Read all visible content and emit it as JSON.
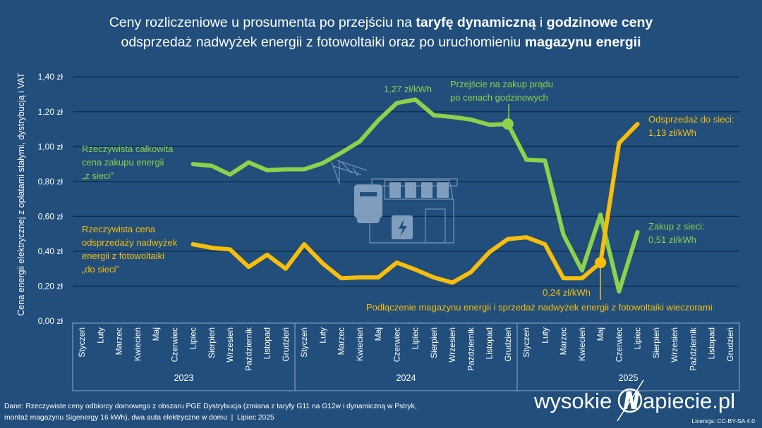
{
  "title": {
    "line1": [
      {
        "text": "Ceny rozliczeniowe u prosumenta po przejściu na ",
        "bold": false
      },
      {
        "text": "taryfę dynamiczną",
        "bold": true
      },
      {
        "text": " i ",
        "bold": false
      },
      {
        "text": "godzinowe ceny",
        "bold": true
      }
    ],
    "line2": [
      {
        "text": "odsprzedaż nadwyżek energii z fotowoltaiki oraz po uruchomieniu ",
        "bold": false
      },
      {
        "text": "magazynu energii",
        "bold": true
      }
    ]
  },
  "colors": {
    "background": "#214e7b",
    "green": "#8dd24a",
    "yellow": "#f8be0a",
    "grid": "#0f2d4b",
    "text": "#ffffff"
  },
  "chart_data": {
    "type": "line",
    "ylabel": "Cena energii elektrycznej z opłatami stałymi, dystrybucją i VAT",
    "ylim": [
      0,
      1.4
    ],
    "yticks": [
      0,
      0.2,
      0.4,
      0.6,
      0.8,
      1.0,
      1.2,
      1.4
    ],
    "ytick_labels": [
      "0,00 zł",
      "0,20 zł",
      "0,40 zł",
      "0,60 zł",
      "0,80 zł",
      "1,00 zł",
      "1,20 zł",
      "1,40 zł"
    ],
    "grid": true,
    "years": [
      "2023",
      "2024",
      "2025"
    ],
    "months": [
      "Styczeń",
      "Luty",
      "Marzec",
      "Kwiecień",
      "Maj",
      "Czerwiec",
      "Lipiec",
      "Sierpień",
      "Wrzesień",
      "Październik",
      "Listopad",
      "Grudzień"
    ],
    "series": [
      {
        "name": "Rzeczywista całkowita cena zakupu energii „z sieci”",
        "color": "#8dd24a",
        "values": [
          null,
          null,
          null,
          null,
          null,
          null,
          0.9,
          0.89,
          0.84,
          0.91,
          0.865,
          0.87,
          0.87,
          0.905,
          0.965,
          1.03,
          1.15,
          1.25,
          1.27,
          1.18,
          1.17,
          1.155,
          1.125,
          1.13,
          0.925,
          0.92,
          0.495,
          0.29,
          0.61,
          0.17,
          0.51,
          null,
          null,
          null,
          null,
          null
        ]
      },
      {
        "name": "Rzeczywista cena odsprzedaży nadwyżek energii z fotowoltaiki „do sieci”",
        "color": "#f8be0a",
        "values": [
          null,
          null,
          null,
          null,
          null,
          null,
          0.44,
          0.42,
          0.41,
          0.31,
          0.38,
          0.3,
          0.44,
          0.33,
          0.245,
          0.25,
          0.25,
          0.335,
          0.295,
          0.25,
          0.22,
          0.28,
          0.395,
          0.47,
          0.48,
          0.44,
          0.245,
          0.245,
          0.335,
          1.02,
          1.13,
          null,
          null,
          null,
          null,
          null
        ]
      }
    ],
    "annotations": {
      "green_peak": "1,27 zł/kWh",
      "green_switch": [
        "Przejście na zakup prądu",
        "po cenach godzinowych"
      ],
      "green_legend": [
        "Rzeczywista całkowita",
        "cena zakupu energii",
        "„z sieci”"
      ],
      "yellow_legend": [
        "Rzeczywista cena",
        "odsprzedaży nadwyżek",
        "energii z fotowoltaiki",
        "„do sieci”"
      ],
      "yellow_end": [
        "Odsprzedaż do sieci:",
        "1,13 zł/kWh"
      ],
      "green_end": [
        "Zakup z sieci:",
        "0,51 zł/kWh"
      ],
      "yellow_storage_value": "0,24 zł/kWh",
      "yellow_storage": "Podłączenie magazynu energii i sprzedaż nadwyżek energii z fotowoltaiki wieczorami"
    }
  },
  "footer": {
    "source_line1": "Dane: Rzeczywiste ceny odbiorcy domowego z obszaru PGE Dystrybucja (zmiana z taryfy G11 na G12w i dynamiczną w Pstryk,",
    "source_line2": "montaż magazynu Sigenergy 16 kWh), dwa auta elektryczne w domu  |  Lipiec 2025",
    "logo": "wysokienapiecie.pl",
    "logo_left": "wysokie",
    "logo_right": "apiecie.pl",
    "license": "Licencja: CC-BY-SA 4.0"
  },
  "illustration": "house-with-meter-solar-panels-battery-icon"
}
